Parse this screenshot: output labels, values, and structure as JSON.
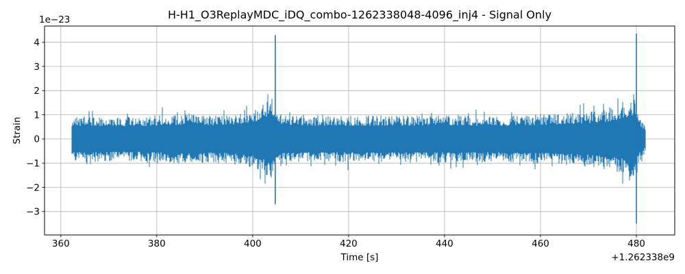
{
  "chart_data": {
    "type": "line",
    "title": "H-H1_O3ReplayMDC_iDQ_combo-1262338048-4096_inj4 - Signal Only",
    "xlabel": "Time [s]",
    "ylabel": "Strain",
    "x_offset_label": "+1.262338e9",
    "y_scale_label": "1e−23",
    "grid": true,
    "legend": "none",
    "line_color": "#1f77b4",
    "grid_color": "#b0b0b0",
    "xlim": [
      356.6,
      488.0
    ],
    "ylim": [
      -3.97,
      4.67
    ],
    "x_ticks": [
      360,
      380,
      400,
      420,
      440,
      460,
      480
    ],
    "x_tick_labels": [
      "360",
      "380",
      "400",
      "420",
      "440",
      "460",
      "480"
    ],
    "y_ticks": [
      -3,
      -2,
      -1,
      0,
      1,
      2,
      3,
      4
    ],
    "y_tick_labels": [
      "−3",
      "−2",
      "−1",
      "0",
      "1",
      "2",
      "3",
      "4"
    ],
    "y_units": "strain × 1e-23",
    "series": [
      {
        "name": "H1 strain, signal only",
        "kind": "band-limited noise with two injection transients",
        "t_start": 362.25,
        "t_end": 481.9,
        "typical_amplitude_1e23": 0.85,
        "envelope": [
          [
            362.25,
            0.8
          ],
          [
            365,
            0.85
          ],
          [
            370,
            0.82
          ],
          [
            375,
            0.8
          ],
          [
            380,
            0.85
          ],
          [
            385,
            0.9
          ],
          [
            388,
            0.95
          ],
          [
            391,
            0.86
          ],
          [
            394,
            0.88
          ],
          [
            397,
            0.95
          ],
          [
            400,
            1.05
          ],
          [
            402,
            1.2
          ],
          [
            403.8,
            1.55
          ],
          [
            404.6,
            1.15
          ],
          [
            405.5,
            0.9
          ],
          [
            410,
            0.85
          ],
          [
            420,
            0.84
          ],
          [
            430,
            0.85
          ],
          [
            440,
            0.86
          ],
          [
            450,
            0.84
          ],
          [
            458,
            0.88
          ],
          [
            465,
            0.92
          ],
          [
            470,
            1.0
          ],
          [
            474,
            1.1
          ],
          [
            477,
            1.22
          ],
          [
            478.8,
            1.4
          ],
          [
            479.8,
            1.55
          ],
          [
            480.4,
            1.0
          ],
          [
            481.0,
            0.75
          ],
          [
            481.9,
            0.5
          ]
        ],
        "spikes": [
          {
            "t": 404.7,
            "max_1e23": 4.3,
            "min_1e23": -2.7
          },
          {
            "t": 480.0,
            "max_1e23": 4.35,
            "min_1e23": -3.5
          }
        ]
      }
    ]
  }
}
